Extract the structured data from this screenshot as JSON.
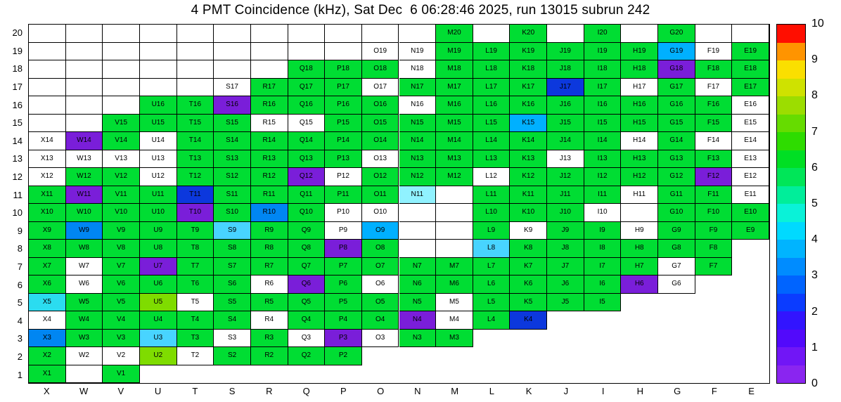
{
  "title": "4 PMT Coincidence (kHz), Sat Dec  6 06:28:46 2025, run 13015 subrun 242",
  "chart_data": {
    "type": "heatmap",
    "title": "4 PMT Coincidence (kHz), Sat Dec  6 06:28:46 2025, run 13015 subrun 242",
    "x_categories": [
      "X",
      "W",
      "V",
      "U",
      "T",
      "S",
      "R",
      "Q",
      "P",
      "O",
      "N",
      "M",
      "L",
      "K",
      "J",
      "I",
      "H",
      "G",
      "F",
      "E"
    ],
    "y_categories": [
      "20",
      "19",
      "18",
      "17",
      "16",
      "15",
      "14",
      "13",
      "12",
      "11",
      "10",
      "9",
      "8",
      "7",
      "6",
      "5",
      "4",
      "3",
      "2",
      "1"
    ],
    "colorbar": {
      "min": 0,
      "max": 10,
      "tick_labels": [
        "10",
        "9",
        "8",
        "7",
        "6",
        "5",
        "4",
        "3",
        "2",
        "1",
        "0"
      ],
      "band_colors_bottom_to_top": [
        "#8a25f0",
        "#7116f6",
        "#5209fb",
        "#3214ff",
        "#0b3cff",
        "#0064ff",
        "#008cff",
        "#00b4ff",
        "#00daff",
        "#0af2d8",
        "#00ee9a",
        "#00e658",
        "#00df24",
        "#2edc00",
        "#66dc00",
        "#9cdd00",
        "#cfe200",
        "#fadf00",
        "#ff9400",
        "#ff0e00"
      ]
    },
    "palette": {
      "g": {
        "color": "#00dd33",
        "approx_value": 5.5
      },
      "ch": {
        "color": "#7fdc00",
        "approx_value": 7.3
      },
      "p": {
        "color": "#7a1ed9",
        "approx_value": 0.6
      },
      "db": {
        "color": "#0c38dd",
        "approx_value": 1.5
      },
      "b": {
        "color": "#0086f2",
        "approx_value": 2.7
      },
      "lb": {
        "color": "#00b0ff",
        "approx_value": 3.2
      },
      "c": {
        "color": "#48d4ff",
        "approx_value": 3.9
      },
      "pc": {
        "color": "#90f2ff",
        "approx_value": 4.3
      },
      "cy": {
        "color": "#2bdcf0",
        "approx_value": 4.0
      },
      "w": {
        "color": "#ffffff",
        "approx_value": 0
      }
    },
    "cell_states": {
      "0": "absent (no cell drawn)",
      "1": "empty cell (border only, no label)"
    },
    "cells": [
      [
        1,
        1,
        1,
        1,
        1,
        1,
        1,
        1,
        1,
        1,
        1,
        [
          "M20",
          "g"
        ],
        1,
        [
          "K20",
          "g"
        ],
        1,
        [
          "I20",
          "g"
        ],
        1,
        [
          "G20",
          "g"
        ],
        1,
        1
      ],
      [
        1,
        1,
        1,
        1,
        1,
        1,
        1,
        1,
        1,
        [
          "O19",
          "w"
        ],
        [
          "N19",
          "w"
        ],
        [
          "M19",
          "g"
        ],
        [
          "L19",
          "g"
        ],
        [
          "K19",
          "g"
        ],
        [
          "J19",
          "g"
        ],
        [
          "I19",
          "g"
        ],
        [
          "H19",
          "g"
        ],
        [
          "G19",
          "lb"
        ],
        [
          "F19",
          "w"
        ],
        [
          "E19",
          "g"
        ]
      ],
      [
        1,
        1,
        1,
        1,
        1,
        1,
        1,
        [
          "Q18",
          "g"
        ],
        [
          "P18",
          "g"
        ],
        [
          "O18",
          "g"
        ],
        [
          "N18",
          "w"
        ],
        [
          "M18",
          "g"
        ],
        [
          "L18",
          "g"
        ],
        [
          "K18",
          "g"
        ],
        [
          "J18",
          "g"
        ],
        [
          "I18",
          "g"
        ],
        [
          "H18",
          "g"
        ],
        [
          "G18",
          "p"
        ],
        [
          "F18",
          "g"
        ],
        [
          "E18",
          "g"
        ]
      ],
      [
        1,
        1,
        1,
        1,
        1,
        [
          "S17",
          "w"
        ],
        [
          "R17",
          "g"
        ],
        [
          "Q17",
          "g"
        ],
        [
          "P17",
          "g"
        ],
        [
          "O17",
          "w"
        ],
        [
          "N17",
          "g"
        ],
        [
          "M17",
          "g"
        ],
        [
          "L17",
          "g"
        ],
        [
          "K17",
          "g"
        ],
        [
          "J17",
          "db"
        ],
        [
          "I17",
          "g"
        ],
        [
          "H17",
          "w"
        ],
        [
          "G17",
          "g"
        ],
        [
          "F17",
          "w"
        ],
        [
          "E17",
          "g"
        ]
      ],
      [
        1,
        1,
        1,
        [
          "U16",
          "g"
        ],
        [
          "T16",
          "g"
        ],
        [
          "S16",
          "p"
        ],
        [
          "R16",
          "g"
        ],
        [
          "Q16",
          "g"
        ],
        [
          "P16",
          "g"
        ],
        [
          "O16",
          "g"
        ],
        [
          "N16",
          "w"
        ],
        [
          "M16",
          "g"
        ],
        [
          "L16",
          "g"
        ],
        [
          "K16",
          "g"
        ],
        [
          "J16",
          "g"
        ],
        [
          "I16",
          "g"
        ],
        [
          "H16",
          "g"
        ],
        [
          "G16",
          "g"
        ],
        [
          "F16",
          "g"
        ],
        [
          "E16",
          "w"
        ]
      ],
      [
        1,
        1,
        [
          "V15",
          "g"
        ],
        [
          "U15",
          "g"
        ],
        [
          "T15",
          "g"
        ],
        [
          "S15",
          "g"
        ],
        [
          "R15",
          "w"
        ],
        [
          "Q15",
          "w"
        ],
        [
          "P15",
          "g"
        ],
        [
          "O15",
          "g"
        ],
        [
          "N15",
          "g"
        ],
        [
          "M15",
          "g"
        ],
        [
          "L15",
          "g"
        ],
        [
          "K15",
          "lb"
        ],
        [
          "J15",
          "g"
        ],
        [
          "I15",
          "g"
        ],
        [
          "H15",
          "g"
        ],
        [
          "G15",
          "g"
        ],
        [
          "F15",
          "g"
        ],
        [
          "E15",
          "w"
        ]
      ],
      [
        [
          "X14",
          "w"
        ],
        [
          "W14",
          "p"
        ],
        [
          "V14",
          "g"
        ],
        [
          "U14",
          "w"
        ],
        [
          "T14",
          "g"
        ],
        [
          "S14",
          "g"
        ],
        [
          "R14",
          "g"
        ],
        [
          "Q14",
          "g"
        ],
        [
          "P14",
          "g"
        ],
        [
          "O14",
          "g"
        ],
        [
          "N14",
          "g"
        ],
        [
          "M14",
          "g"
        ],
        [
          "L14",
          "g"
        ],
        [
          "K14",
          "g"
        ],
        [
          "J14",
          "g"
        ],
        [
          "I14",
          "g"
        ],
        [
          "H14",
          "w"
        ],
        [
          "G14",
          "g"
        ],
        [
          "F14",
          "w"
        ],
        [
          "E14",
          "w"
        ]
      ],
      [
        [
          "X13",
          "w"
        ],
        [
          "W13",
          "w"
        ],
        [
          "V13",
          "w"
        ],
        [
          "U13",
          "w"
        ],
        [
          "T13",
          "g"
        ],
        [
          "S13",
          "g"
        ],
        [
          "R13",
          "g"
        ],
        [
          "Q13",
          "g"
        ],
        [
          "P13",
          "g"
        ],
        [
          "O13",
          "w"
        ],
        [
          "N13",
          "g"
        ],
        [
          "M13",
          "g"
        ],
        [
          "L13",
          "g"
        ],
        [
          "K13",
          "g"
        ],
        [
          "J13",
          "w"
        ],
        [
          "I13",
          "g"
        ],
        [
          "H13",
          "g"
        ],
        [
          "G13",
          "g"
        ],
        [
          "F13",
          "g"
        ],
        [
          "E13",
          "w"
        ]
      ],
      [
        [
          "X12",
          "w"
        ],
        [
          "W12",
          "g"
        ],
        [
          "V12",
          "g"
        ],
        [
          "U12",
          "w"
        ],
        [
          "T12",
          "g"
        ],
        [
          "S12",
          "g"
        ],
        [
          "R12",
          "g"
        ],
        [
          "Q12",
          "p"
        ],
        [
          "P12",
          "w"
        ],
        [
          "O12",
          "g"
        ],
        [
          "N12",
          "g"
        ],
        [
          "M12",
          "g"
        ],
        [
          "L12",
          "w"
        ],
        [
          "K12",
          "g"
        ],
        [
          "J12",
          "g"
        ],
        [
          "I12",
          "g"
        ],
        [
          "H12",
          "g"
        ],
        [
          "G12",
          "g"
        ],
        [
          "F12",
          "p"
        ],
        [
          "E12",
          "w"
        ]
      ],
      [
        [
          "X11",
          "g"
        ],
        [
          "W11",
          "p"
        ],
        [
          "V11",
          "g"
        ],
        [
          "U11",
          "g"
        ],
        [
          "T11",
          "db"
        ],
        [
          "S11",
          "g"
        ],
        [
          "R11",
          "g"
        ],
        [
          "Q11",
          "g"
        ],
        [
          "P11",
          "g"
        ],
        [
          "O11",
          "g"
        ],
        [
          "N11",
          "pc"
        ],
        1,
        [
          "L11",
          "g"
        ],
        [
          "K11",
          "g"
        ],
        [
          "J11",
          "g"
        ],
        [
          "I11",
          "g"
        ],
        [
          "H11",
          "w"
        ],
        [
          "G11",
          "g"
        ],
        [
          "F11",
          "g"
        ],
        [
          "E11",
          "w"
        ]
      ],
      [
        [
          "X10",
          "g"
        ],
        [
          "W10",
          "g"
        ],
        [
          "V10",
          "g"
        ],
        [
          "U10",
          "g"
        ],
        [
          "T10",
          "p"
        ],
        [
          "S10",
          "g"
        ],
        [
          "R10",
          "b"
        ],
        [
          "Q10",
          "g"
        ],
        [
          "P10",
          "w"
        ],
        [
          "O10",
          "w"
        ],
        1,
        1,
        [
          "L10",
          "g"
        ],
        [
          "K10",
          "g"
        ],
        [
          "J10",
          "g"
        ],
        [
          "I10",
          "w"
        ],
        1,
        [
          "G10",
          "g"
        ],
        [
          "F10",
          "g"
        ],
        [
          "E10",
          "g"
        ]
      ],
      [
        [
          "X9",
          "g"
        ],
        [
          "W9",
          "b"
        ],
        [
          "V9",
          "g"
        ],
        [
          "U9",
          "g"
        ],
        [
          "T9",
          "g"
        ],
        [
          "S9",
          "c"
        ],
        [
          "R9",
          "g"
        ],
        [
          "Q9",
          "g"
        ],
        [
          "P9",
          "w"
        ],
        [
          "O9",
          "lb"
        ],
        1,
        1,
        [
          "L9",
          "g"
        ],
        [
          "K9",
          "w"
        ],
        [
          "J9",
          "g"
        ],
        [
          "I9",
          "g"
        ],
        [
          "H9",
          "w"
        ],
        [
          "G9",
          "g"
        ],
        [
          "F9",
          "g"
        ],
        [
          "E9",
          "g"
        ]
      ],
      [
        [
          "X8",
          "g"
        ],
        [
          "W8",
          "g"
        ],
        [
          "V8",
          "g"
        ],
        [
          "U8",
          "g"
        ],
        [
          "T8",
          "g"
        ],
        [
          "S8",
          "g"
        ],
        [
          "R8",
          "g"
        ],
        [
          "Q8",
          "g"
        ],
        [
          "P8",
          "p"
        ],
        [
          "O8",
          "g"
        ],
        1,
        1,
        [
          "L8",
          "c"
        ],
        [
          "K8",
          "g"
        ],
        [
          "J8",
          "g"
        ],
        [
          "I8",
          "g"
        ],
        [
          "H8",
          "g"
        ],
        [
          "G8",
          "g"
        ],
        [
          "F8",
          "g"
        ],
        0
      ],
      [
        [
          "X7",
          "g"
        ],
        [
          "W7",
          "w"
        ],
        [
          "V7",
          "g"
        ],
        [
          "U7",
          "p"
        ],
        [
          "T7",
          "g"
        ],
        [
          "S7",
          "g"
        ],
        [
          "R7",
          "g"
        ],
        [
          "Q7",
          "g"
        ],
        [
          "P7",
          "g"
        ],
        [
          "O7",
          "g"
        ],
        [
          "N7",
          "g"
        ],
        [
          "M7",
          "g"
        ],
        [
          "L7",
          "g"
        ],
        [
          "K7",
          "g"
        ],
        [
          "J7",
          "g"
        ],
        [
          "I7",
          "g"
        ],
        [
          "H7",
          "g"
        ],
        [
          "G7",
          "w"
        ],
        [
          "F7",
          "g"
        ],
        0
      ],
      [
        [
          "X6",
          "g"
        ],
        [
          "W6",
          "w"
        ],
        [
          "V6",
          "g"
        ],
        [
          "U6",
          "g"
        ],
        [
          "T6",
          "g"
        ],
        [
          "S6",
          "g"
        ],
        [
          "R6",
          "w"
        ],
        [
          "Q6",
          "p"
        ],
        [
          "P6",
          "g"
        ],
        [
          "O6",
          "w"
        ],
        [
          "N6",
          "g"
        ],
        [
          "M6",
          "g"
        ],
        [
          "L6",
          "g"
        ],
        [
          "K6",
          "g"
        ],
        [
          "J6",
          "g"
        ],
        [
          "I6",
          "g"
        ],
        [
          "H6",
          "p"
        ],
        [
          "G6",
          "w"
        ],
        0,
        0
      ],
      [
        [
          "X5",
          "cy"
        ],
        [
          "W5",
          "g"
        ],
        [
          "V5",
          "g"
        ],
        [
          "U5",
          "ch"
        ],
        [
          "T5",
          "w"
        ],
        [
          "S5",
          "g"
        ],
        [
          "R5",
          "g"
        ],
        [
          "Q5",
          "g"
        ],
        [
          "P5",
          "g"
        ],
        [
          "O5",
          "g"
        ],
        [
          "N5",
          "g"
        ],
        [
          "M5",
          "w"
        ],
        [
          "L5",
          "g"
        ],
        [
          "K5",
          "g"
        ],
        [
          "J5",
          "g"
        ],
        [
          "I5",
          "g"
        ],
        0,
        0,
        0,
        0
      ],
      [
        [
          "X4",
          "w"
        ],
        [
          "W4",
          "g"
        ],
        [
          "V4",
          "g"
        ],
        [
          "U4",
          "g"
        ],
        [
          "T4",
          "g"
        ],
        [
          "S4",
          "g"
        ],
        [
          "R4",
          "w"
        ],
        [
          "Q4",
          "g"
        ],
        [
          "P4",
          "g"
        ],
        [
          "O4",
          "g"
        ],
        [
          "N4",
          "p"
        ],
        [
          "M4",
          "w"
        ],
        [
          "L4",
          "g"
        ],
        [
          "K4",
          "db"
        ],
        0,
        0,
        0,
        0,
        0,
        0
      ],
      [
        [
          "X3",
          "b"
        ],
        [
          "W3",
          "g"
        ],
        [
          "V3",
          "g"
        ],
        [
          "U3",
          "c"
        ],
        [
          "T3",
          "g"
        ],
        [
          "S3",
          "w"
        ],
        [
          "R3",
          "g"
        ],
        [
          "Q3",
          "w"
        ],
        [
          "P3",
          "p"
        ],
        [
          "O3",
          "w"
        ],
        [
          "N3",
          "g"
        ],
        [
          "M3",
          "g"
        ],
        0,
        0,
        0,
        0,
        0,
        0,
        0,
        0
      ],
      [
        [
          "X2",
          "g"
        ],
        [
          "W2",
          "w"
        ],
        [
          "V2",
          "w"
        ],
        [
          "U2",
          "ch"
        ],
        [
          "T2",
          "w"
        ],
        [
          "S2",
          "g"
        ],
        [
          "R2",
          "g"
        ],
        [
          "Q2",
          "g"
        ],
        [
          "P2",
          "g"
        ],
        0,
        0,
        0,
        0,
        0,
        0,
        0,
        0,
        0,
        0,
        0
      ],
      [
        [
          "X1",
          "g"
        ],
        1,
        [
          "V1",
          "g"
        ],
        0,
        0,
        0,
        0,
        0,
        0,
        0,
        0,
        0,
        0,
        0,
        0,
        0,
        0,
        0,
        0,
        0
      ]
    ]
  }
}
